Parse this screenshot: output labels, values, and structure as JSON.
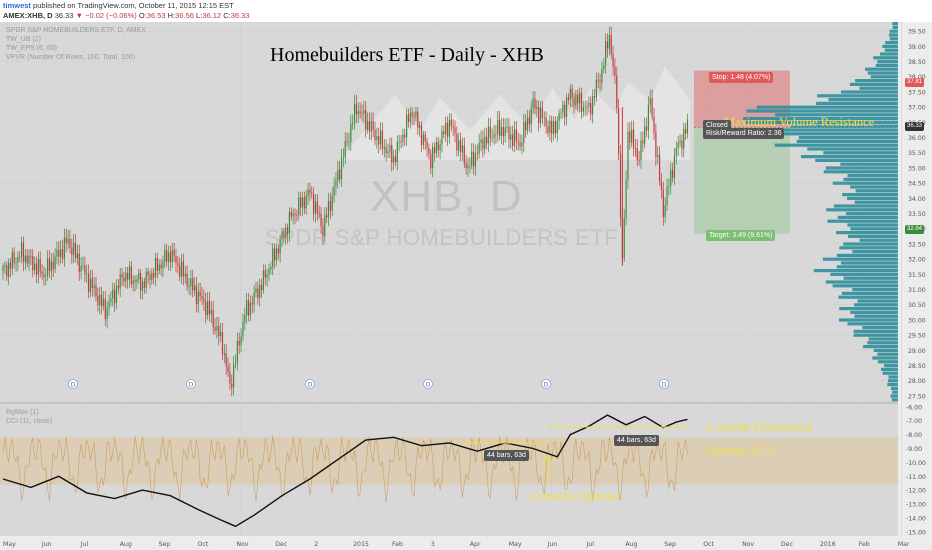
{
  "header": {
    "username": "timwest",
    "published_text": "published on TradingView.com, October 11, 2015 12:15 EST",
    "symbol_line": "AMEX:XHB, D",
    "last_price": "36.33",
    "change": "▼ −0.02 (−0.06%)",
    "ohlc": {
      "o_label": "O:",
      "o": "36.53",
      "h_label": "H:",
      "h": "36.56",
      "l_label": "L:",
      "l": "36.12",
      "c_label": "C:",
      "c": "36.33"
    }
  },
  "indicators_top": [
    "SPDR S&P HOMEBUILDERS ETF, D, AMEX",
    "TW_UB (2)",
    "TW_EPS (6, 60)",
    "VPVR (Number Of Rows, 100, Total, 100)"
  ],
  "indicators_bottom": [
    "RgMov (1)",
    "CCI (11, close)"
  ],
  "watermark": {
    "ticker": "XHB, D",
    "name": "SPDR S&P HOMEBUILDERS ETF"
  },
  "annotations": {
    "title": "Homebuilders ETF - Daily - XHB",
    "max_volume": "Maximum Volume Resistance",
    "downtrend": "2-month Downtrend",
    "overbot": "Overbot CCI",
    "uptrend": "2-month Uptrend"
  },
  "position_tool": {
    "stop_label": "Stop: 1.48 (4.07%)",
    "target_label": "Target: 3.49 (9.61%)",
    "rr_label": "Risk/Reward Ratio: 2.36",
    "closed_label": "Closed",
    "stop_price": 37.81,
    "entry_price": 36.33,
    "target_price": 32.84
  },
  "price_tags": {
    "stop": "37.81",
    "last": "36.33",
    "target": "32.84"
  },
  "bars_boxes": {
    "left": "44 bars, 63d",
    "right": "44 bars, 63d"
  },
  "dividend_marker": "D",
  "colors": {
    "bg": "#d8d8d8",
    "up": "#3d8a3d",
    "down": "#c23a3a",
    "volume": "#2f8f9d",
    "annotation": "#f0e040",
    "stop": "#e05a5a",
    "target": "#7bbf72"
  },
  "chart_data": [
    {
      "type": "candlestick",
      "title": "",
      "x_tick_labels": [
        "May",
        "Jun",
        "Jul",
        "Aug",
        "Sep",
        "Oct",
        "Nov",
        "Dec",
        "2",
        "2015",
        "Feb",
        "3",
        "Apr",
        "May",
        "Jun",
        "Jul",
        "Aug",
        "Sep",
        "Oct",
        "Nov",
        "Dec",
        "2016",
        "Feb",
        "Mar"
      ],
      "y_tick_labels": [
        "27.50",
        "28.00",
        "28.50",
        "29.00",
        "29.50",
        "30.00",
        "30.50",
        "31.00",
        "31.50",
        "32.00",
        "32.50",
        "33.00",
        "33.50",
        "34.00",
        "34.50",
        "35.00",
        "35.50",
        "36.00",
        "36.50",
        "37.00",
        "37.50",
        "38.00",
        "38.50",
        "39.00",
        "39.50"
      ],
      "ylim": [
        27.3,
        39.8
      ],
      "close_path": [
        {
          "t": 0,
          "c": 31.6
        },
        {
          "t": 10,
          "c": 32.2
        },
        {
          "t": 22,
          "c": 31.5
        },
        {
          "t": 35,
          "c": 32.6
        },
        {
          "t": 45,
          "c": 31.4
        },
        {
          "t": 55,
          "c": 30.3
        },
        {
          "t": 65,
          "c": 31.5
        },
        {
          "t": 75,
          "c": 31.2
        },
        {
          "t": 90,
          "c": 32.2
        },
        {
          "t": 100,
          "c": 31.2
        },
        {
          "t": 110,
          "c": 30.4
        },
        {
          "t": 118,
          "c": 29.2
        },
        {
          "t": 122,
          "c": 27.8
        },
        {
          "t": 130,
          "c": 30.2
        },
        {
          "t": 140,
          "c": 31.3
        },
        {
          "t": 155,
          "c": 33.4
        },
        {
          "t": 165,
          "c": 34.2
        },
        {
          "t": 172,
          "c": 33.0
        },
        {
          "t": 182,
          "c": 35.2
        },
        {
          "t": 190,
          "c": 37.0
        },
        {
          "t": 200,
          "c": 36.1
        },
        {
          "t": 210,
          "c": 35.3
        },
        {
          "t": 220,
          "c": 36.9
        },
        {
          "t": 230,
          "c": 35.3
        },
        {
          "t": 240,
          "c": 36.5
        },
        {
          "t": 250,
          "c": 35.0
        },
        {
          "t": 258,
          "c": 35.9
        },
        {
          "t": 268,
          "c": 36.3
        },
        {
          "t": 278,
          "c": 35.8
        },
        {
          "t": 285,
          "c": 37.1
        },
        {
          "t": 295,
          "c": 36.2
        },
        {
          "t": 305,
          "c": 37.4
        },
        {
          "t": 315,
          "c": 36.9
        },
        {
          "t": 322,
          "c": 38.2
        },
        {
          "t": 326,
          "c": 39.4
        },
        {
          "t": 330,
          "c": 37.2
        },
        {
          "t": 333,
          "c": 31.8
        },
        {
          "t": 336,
          "c": 36.2
        },
        {
          "t": 342,
          "c": 35.3
        },
        {
          "t": 348,
          "c": 37.2
        },
        {
          "t": 355,
          "c": 33.6
        },
        {
          "t": 362,
          "c": 35.6
        },
        {
          "t": 368,
          "c": 36.33
        }
      ],
      "volume_profile": {
        "price_range": [
          27.3,
          39.8
        ],
        "max_volume_price": 36.8,
        "shape": [
          {
            "price": 39.5,
            "rel": 0.04
          },
          {
            "price": 39.0,
            "rel": 0.08
          },
          {
            "price": 38.5,
            "rel": 0.14
          },
          {
            "price": 38.0,
            "rel": 0.2
          },
          {
            "price": 37.5,
            "rel": 0.32
          },
          {
            "price": 37.0,
            "rel": 0.62
          },
          {
            "price": 36.8,
            "rel": 1.0
          },
          {
            "price": 36.5,
            "rel": 0.92
          },
          {
            "price": 36.0,
            "rel": 0.78
          },
          {
            "price": 35.5,
            "rel": 0.6
          },
          {
            "price": 35.0,
            "rel": 0.45
          },
          {
            "price": 34.5,
            "rel": 0.36
          },
          {
            "price": 34.0,
            "rel": 0.3
          },
          {
            "price": 33.5,
            "rel": 0.42
          },
          {
            "price": 33.0,
            "rel": 0.36
          },
          {
            "price": 32.5,
            "rel": 0.3
          },
          {
            "price": 32.0,
            "rel": 0.4
          },
          {
            "price": 31.5,
            "rel": 0.46
          },
          {
            "price": 31.0,
            "rel": 0.38
          },
          {
            "price": 30.5,
            "rel": 0.3
          },
          {
            "price": 30.0,
            "rel": 0.34
          },
          {
            "price": 29.5,
            "rel": 0.26
          },
          {
            "price": 29.0,
            "rel": 0.18
          },
          {
            "price": 28.5,
            "rel": 0.12
          },
          {
            "price": 28.0,
            "rel": 0.07
          },
          {
            "price": 27.5,
            "rel": 0.04
          }
        ]
      }
    },
    {
      "type": "line",
      "title": "",
      "series": [
        {
          "name": "RgMov (1)"
        },
        {
          "name": "CCI (11, close)"
        }
      ],
      "y_tick_labels": [
        "-6.00",
        "-7.00",
        "-8.00",
        "-9.00",
        "-10.00",
        "-11.00",
        "-12.00",
        "-13.00",
        "-14.00",
        "-15.00"
      ],
      "ylim": [
        -15.3,
        -5.8
      ],
      "rgmov_path": [
        {
          "t": 0,
          "v": -11.2
        },
        {
          "t": 15,
          "v": -11.8
        },
        {
          "t": 30,
          "v": -11.0
        },
        {
          "t": 45,
          "v": -12.2
        },
        {
          "t": 60,
          "v": -12.6
        },
        {
          "t": 75,
          "v": -12.0
        },
        {
          "t": 90,
          "v": -12.4
        },
        {
          "t": 105,
          "v": -13.4
        },
        {
          "t": 118,
          "v": -14.2
        },
        {
          "t": 125,
          "v": -14.6
        },
        {
          "t": 135,
          "v": -13.8
        },
        {
          "t": 150,
          "v": -12.4
        },
        {
          "t": 165,
          "v": -11.2
        },
        {
          "t": 180,
          "v": -9.8
        },
        {
          "t": 195,
          "v": -8.4
        },
        {
          "t": 210,
          "v": -8.2
        },
        {
          "t": 225,
          "v": -8.8
        },
        {
          "t": 240,
          "v": -8.6
        },
        {
          "t": 255,
          "v": -9.2
        },
        {
          "t": 270,
          "v": -8.6
        },
        {
          "t": 285,
          "v": -9.0
        },
        {
          "t": 298,
          "v": -9.6
        },
        {
          "t": 305,
          "v": -8.0
        },
        {
          "t": 315,
          "v": -7.4
        },
        {
          "t": 325,
          "v": -6.6
        },
        {
          "t": 335,
          "v": -7.3
        },
        {
          "t": 345,
          "v": -6.7
        },
        {
          "t": 355,
          "v": -7.5
        },
        {
          "t": 362,
          "v": -7.1
        },
        {
          "t": 368,
          "v": -6.9
        }
      ]
    }
  ]
}
